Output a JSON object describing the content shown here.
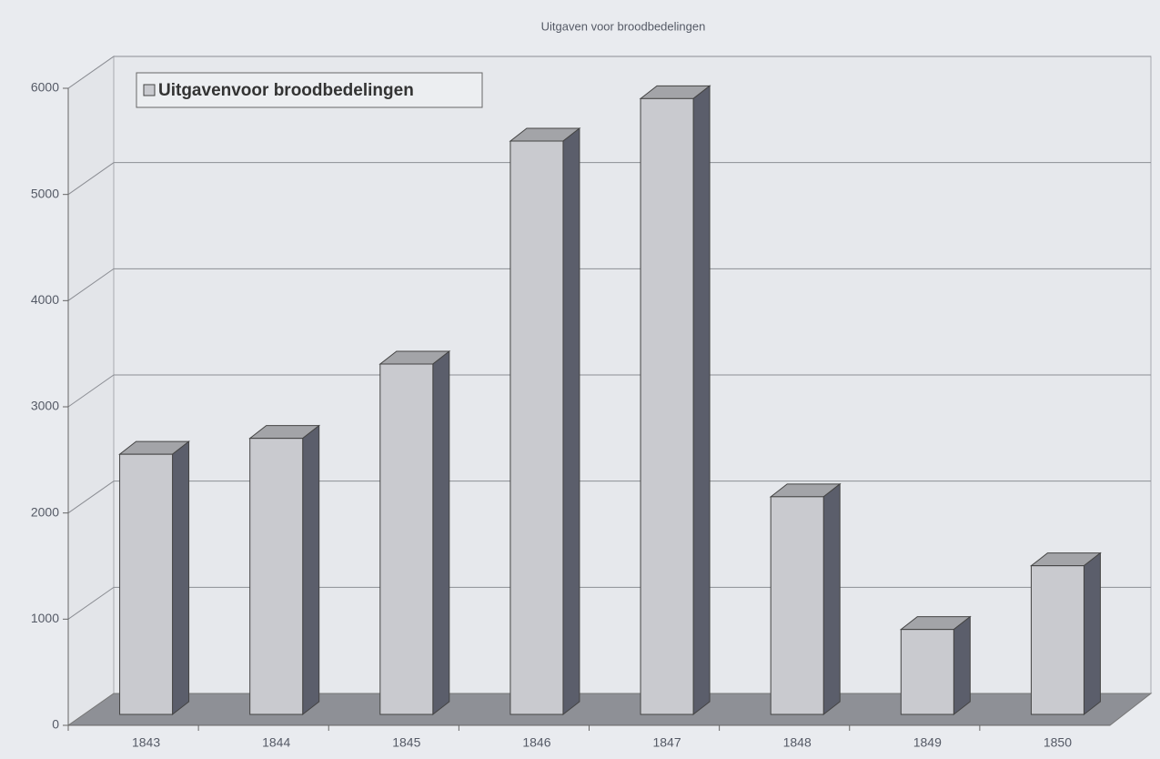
{
  "chart_data": {
    "type": "bar3d",
    "title": "Uitgaven voor broodbedelingen",
    "categories": [
      "1843",
      "1844",
      "1845",
      "1846",
      "1847",
      "1848",
      "1849",
      "1850"
    ],
    "series": [
      {
        "name": "Uitgavenvoor broodbedelingen",
        "color": "#c9cacf",
        "values": [
          2450,
          2600,
          3300,
          5400,
          5800,
          2050,
          800,
          1400
        ]
      }
    ],
    "ylim": [
      0,
      6000
    ],
    "yticks": [
      0,
      1000,
      2000,
      3000,
      4000,
      5000,
      6000
    ],
    "grid": true,
    "legend": "top-left"
  }
}
